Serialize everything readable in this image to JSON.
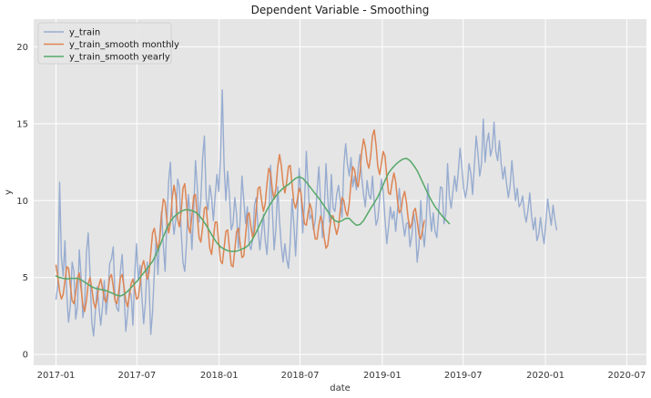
{
  "chart_data": {
    "type": "line",
    "title": "Dependent Variable - Smoothing",
    "xlabel": "date",
    "ylabel": "y",
    "xlim": [
      "2016-11-12",
      "2020-08-14"
    ],
    "ylim": [
      -0.7,
      21.8
    ],
    "grid": true,
    "legend": "top-left",
    "x_ticks": [
      "2017-01",
      "2017-07",
      "2018-01",
      "2018-07",
      "2019-01",
      "2019-07",
      "2020-01",
      "2020-07"
    ],
    "y_ticks": [
      0,
      5,
      10,
      15,
      20
    ],
    "colors": {
      "background": "#e5e5e5",
      "grid": "#ffffff",
      "y_train": "#97acd0",
      "y_train_smooth_monthly": "#dd8452",
      "y_train_smooth_yearly": "#55a868"
    },
    "series": [
      {
        "name": "y_train",
        "x_start": "2017-01-01",
        "x_step_days": 4,
        "values": [
          3.6,
          4.5,
          11.2,
          6.3,
          5.1,
          7.4,
          3.9,
          2.1,
          3.2,
          6.0,
          5.4,
          2.3,
          3.1,
          6.8,
          5.1,
          2.4,
          3.2,
          6.6,
          7.9,
          5.3,
          2.1,
          1.2,
          2.8,
          4.4,
          3.1,
          1.9,
          3.1,
          4.8,
          2.6,
          3.8,
          5.9,
          6.2,
          7.0,
          3.6,
          3.0,
          2.8,
          5.4,
          6.5,
          4.2,
          1.5,
          2.6,
          4.1,
          3.9,
          1.9,
          5.2,
          7.2,
          4.8,
          5.8,
          3.8,
          2.0,
          3.4,
          6.0,
          4.6,
          1.3,
          2.8,
          5.4,
          7.6,
          5.2,
          7.8,
          9.3,
          7.1,
          5.4,
          8.6,
          11.3,
          12.5,
          9.1,
          7.8,
          8.8,
          11.4,
          10.9,
          8.0,
          6.0,
          5.4,
          7.3,
          10.4,
          9.1,
          6.8,
          9.3,
          12.6,
          10.9,
          8.6,
          10.1,
          12.8,
          14.2,
          10.1,
          9.4,
          11.0,
          10.2,
          8.7,
          10.3,
          11.7,
          10.6,
          12.8,
          17.2,
          12.3,
          10.0,
          11.9,
          10.4,
          8.1,
          8.5,
          10.2,
          9.1,
          6.9,
          8.8,
          11.6,
          10.1,
          8.5,
          9.6,
          7.2,
          6.8,
          7.5,
          9.7,
          10.2,
          8.1,
          6.8,
          7.9,
          9.1,
          7.4,
          6.5,
          8.6,
          12.3,
          9.4,
          6.8,
          8.2,
          10.9,
          8.7,
          7.1,
          6.0,
          7.2,
          6.2,
          5.6,
          7.3,
          10.1,
          8.5,
          6.4,
          8.9,
          12.1,
          10.4,
          7.9,
          9.8,
          13.2,
          11.0,
          8.8,
          9.1,
          8.1,
          8.7,
          10.6,
          12.2,
          9.9,
          7.6,
          9.3,
          12.4,
          10.2,
          8.6,
          11.7,
          9.5,
          9.3,
          10.4,
          11.0,
          10.0,
          8.9,
          12.3,
          13.7,
          12.4,
          11.6,
          12.8,
          10.9,
          11.6,
          10.7,
          12.1,
          13.0,
          11.5,
          10.4,
          9.6,
          11.3,
          10.4,
          10.1,
          11.6,
          9.8,
          8.4,
          8.8,
          10.1,
          11.4,
          10.6,
          8.8,
          7.2,
          8.3,
          9.6,
          8.8,
          9.3,
          8.0,
          9.4,
          10.8,
          9.4,
          8.6,
          7.7,
          8.5,
          8.6,
          7.0,
          7.7,
          9.2,
          8.5,
          6.0,
          7.1,
          10.0,
          8.1,
          7.0,
          8.6,
          11.1,
          9.4,
          8.0,
          9.2,
          8.0,
          7.6,
          9.2,
          10.9,
          10.8,
          8.5,
          9.1,
          12.4,
          10.3,
          9.5,
          10.6,
          11.6,
          10.6,
          11.9,
          13.4,
          12.2,
          10.8,
          10.2,
          10.9,
          12.4,
          11.8,
          10.4,
          12.3,
          14.2,
          13.1,
          11.6,
          12.4,
          15.3,
          12.5,
          13.8,
          14.4,
          12.9,
          13.4,
          15.1,
          13.2,
          12.6,
          13.9,
          12.4,
          11.4,
          12.2,
          11.1,
          10.2,
          11.0,
          12.6,
          11.2,
          10.0,
          10.8,
          9.6,
          9.8,
          10.3,
          9.2,
          8.6,
          9.4,
          10.5,
          9.0,
          8.1,
          8.9,
          7.4,
          7.8,
          8.9,
          7.9,
          7.2,
          8.6,
          10.1,
          9.2,
          8.4,
          9.7,
          8.8,
          8.1
        ]
      },
      {
        "name": "y_train_smooth monthly",
        "x_start": "2017-01-01",
        "x_step_days": 4,
        "values": [
          5.8,
          5.0,
          4.1,
          3.6,
          3.9,
          4.8,
          5.7,
          5.6,
          4.5,
          3.5,
          3.3,
          4.0,
          5.0,
          5.3,
          4.3,
          3.2,
          2.8,
          3.5,
          4.6,
          5.0,
          4.3,
          3.4,
          3.0,
          3.6,
          4.5,
          4.9,
          4.3,
          3.6,
          3.4,
          4.1,
          5.0,
          5.2,
          4.4,
          3.5,
          3.3,
          4.0,
          5.0,
          5.2,
          4.4,
          3.5,
          3.1,
          3.8,
          4.6,
          4.9,
          4.3,
          3.6,
          3.7,
          4.6,
          5.7,
          6.1,
          5.5,
          4.9,
          5.3,
          6.6,
          7.9,
          8.2,
          7.4,
          6.8,
          7.5,
          9.0,
          10.1,
          9.9,
          8.7,
          7.9,
          8.6,
          10.2,
          11.0,
          10.3,
          8.8,
          8.3,
          9.3,
          10.8,
          11.1,
          9.8,
          8.3,
          7.9,
          9.0,
          10.3,
          10.4,
          9.0,
          7.6,
          7.3,
          8.3,
          9.5,
          9.6,
          8.2,
          6.9,
          6.5,
          7.5,
          8.6,
          8.6,
          7.3,
          6.1,
          5.9,
          6.9,
          8.0,
          8.1,
          6.9,
          5.8,
          5.7,
          6.8,
          8.0,
          8.2,
          7.2,
          6.3,
          6.4,
          7.7,
          9.0,
          9.2,
          8.3,
          7.6,
          8.0,
          9.5,
          10.8,
          10.9,
          10.0,
          9.3,
          9.8,
          11.1,
          12.1,
          11.8,
          10.7,
          10.1,
          10.8,
          12.2,
          13.0,
          12.3,
          11.1,
          10.5,
          11.2,
          12.2,
          12.3,
          11.1,
          9.9,
          9.5,
          10.1,
          10.8,
          10.5,
          9.4,
          8.5,
          8.4,
          9.2,
          9.8,
          9.4,
          8.3,
          7.5,
          7.5,
          8.4,
          9.0,
          8.6,
          7.6,
          6.9,
          7.1,
          8.1,
          9.0,
          9.0,
          8.3,
          7.8,
          8.3,
          9.4,
          10.2,
          10.0,
          9.3,
          9.0,
          9.8,
          11.2,
          12.2,
          12.0,
          11.2,
          10.9,
          11.8,
          13.2,
          14.0,
          13.5,
          12.5,
          12.1,
          12.9,
          14.2,
          14.6,
          13.6,
          12.2,
          11.7,
          12.4,
          13.2,
          12.9,
          11.6,
          10.5,
          10.4,
          11.2,
          11.8,
          11.2,
          10.0,
          9.2,
          9.4,
          10.2,
          10.6,
          9.9,
          8.8,
          8.2,
          8.5,
          9.3,
          9.5,
          8.7,
          7.8,
          7.5,
          8.1,
          8.7
        ]
      },
      {
        "name": "y_train_smooth yearly",
        "x_start": "2017-01-01",
        "x_step_days": 8,
        "values": [
          5.1,
          5.0,
          4.95,
          4.9,
          4.95,
          4.95,
          4.95,
          4.85,
          4.7,
          4.55,
          4.4,
          4.3,
          4.25,
          4.2,
          4.15,
          4.05,
          3.95,
          3.85,
          3.8,
          3.9,
          4.1,
          4.35,
          4.6,
          4.85,
          5.15,
          5.45,
          5.75,
          6.05,
          6.5,
          7.05,
          7.65,
          8.2,
          8.65,
          8.95,
          9.15,
          9.3,
          9.4,
          9.4,
          9.35,
          9.25,
          9.05,
          8.75,
          8.4,
          8.0,
          7.6,
          7.25,
          7.0,
          6.85,
          6.75,
          6.7,
          6.7,
          6.75,
          6.85,
          6.95,
          7.15,
          7.5,
          7.95,
          8.45,
          8.95,
          9.4,
          9.8,
          10.15,
          10.45,
          10.7,
          10.9,
          11.05,
          11.25,
          11.45,
          11.55,
          11.45,
          11.2,
          10.9,
          10.6,
          10.3,
          10.0,
          9.65,
          9.3,
          8.95,
          8.7,
          8.6,
          8.7,
          8.85,
          8.85,
          8.6,
          8.4,
          8.45,
          8.7,
          9.1,
          9.5,
          9.85,
          10.25,
          10.75,
          11.3,
          11.8,
          12.1,
          12.35,
          12.55,
          12.7,
          12.75,
          12.6,
          12.3,
          11.95,
          11.45,
          10.95,
          10.45,
          10.0,
          9.6,
          9.3,
          9.0,
          8.75,
          8.5
        ]
      }
    ]
  }
}
